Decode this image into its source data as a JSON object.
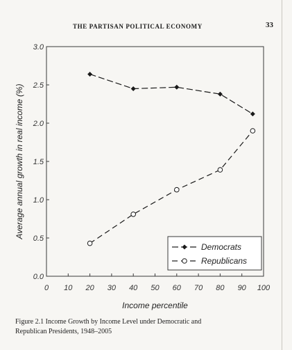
{
  "header": {
    "running_head": "THE PARTISAN POLITICAL ECONOMY",
    "page_number": "33"
  },
  "caption": {
    "line1": "Figure 2.1 Income Growth by Income Level under Democratic and",
    "line2": "Republican Presidents, 1948–2005"
  },
  "chart_data": {
    "type": "line",
    "xlabel": "Income percentile",
    "ylabel": "Average annual growth in real income (%)",
    "xlim": [
      0,
      100
    ],
    "ylim": [
      0.0,
      3.0
    ],
    "xticks": [
      "0",
      "10",
      "20",
      "30",
      "40",
      "50",
      "60",
      "70",
      "80",
      "90",
      "100"
    ],
    "yticks": [
      "0.0",
      "0.5",
      "1.0",
      "1.5",
      "2.0",
      "2.5",
      "3.0"
    ],
    "grid": false,
    "legend_position": "bottom-right",
    "series": [
      {
        "name": "Democrats",
        "style": "long-dash",
        "marker": "filled-diamond",
        "color": "#1a1a1a",
        "x": [
          20,
          40,
          60,
          80,
          95
        ],
        "y": [
          2.64,
          2.45,
          2.47,
          2.38,
          2.12
        ]
      },
      {
        "name": "Republicans",
        "style": "dashed",
        "marker": "open-circle",
        "color": "#1a1a1a",
        "x": [
          20,
          40,
          60,
          80,
          95
        ],
        "y": [
          0.43,
          0.81,
          1.13,
          1.39,
          1.9
        ]
      }
    ]
  }
}
